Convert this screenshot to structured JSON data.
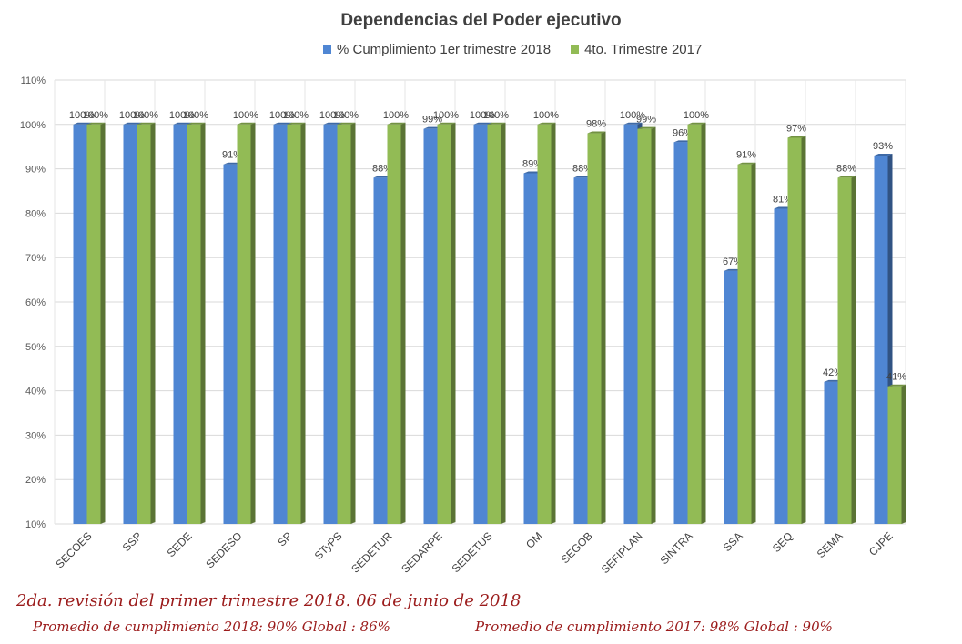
{
  "chart_data": {
    "type": "bar",
    "title": "Dependencias del Poder ejecutivo",
    "categories": [
      "SECOES",
      "SSP",
      "SEDE",
      "SEDESO",
      "SP",
      "STyPS",
      "SEDETUR",
      "SEDARPE",
      "SEDETUS",
      "OM",
      "SEGOB",
      "SEFIPLAN",
      "SINTRA",
      "SSA",
      "SEQ",
      "SEMA",
      "CJPE"
    ],
    "series": [
      {
        "name": "% Cumplimiento 1er trimestre 2018",
        "color": "#4f86d3",
        "values": [
          100,
          100,
          100,
          91,
          100,
          100,
          88,
          99,
          100,
          89,
          88,
          100,
          96,
          67,
          81,
          42,
          93
        ]
      },
      {
        "name": "4to. Trimestre 2017",
        "color": "#92bb55",
        "values": [
          100,
          100,
          100,
          100,
          100,
          100,
          100,
          100,
          100,
          100,
          98,
          99,
          100,
          91,
          97,
          88,
          41
        ]
      }
    ],
    "yticks": [
      "10%",
      "20%",
      "30%",
      "40%",
      "50%",
      "60%",
      "70%",
      "80%",
      "90%",
      "100%",
      "110%"
    ],
    "ylim": [
      10,
      110
    ],
    "value_suffix": "%",
    "grid": true,
    "legend_position": "top"
  },
  "footer": {
    "line1": "2da. revisión del primer trimestre 2018.      06 de junio de 2018",
    "line2": "Promedio de cumplimiento 2018: 90%     Global : 86%",
    "line3": "Promedio de cumplimiento 2017: 98%     Global : 90%"
  }
}
